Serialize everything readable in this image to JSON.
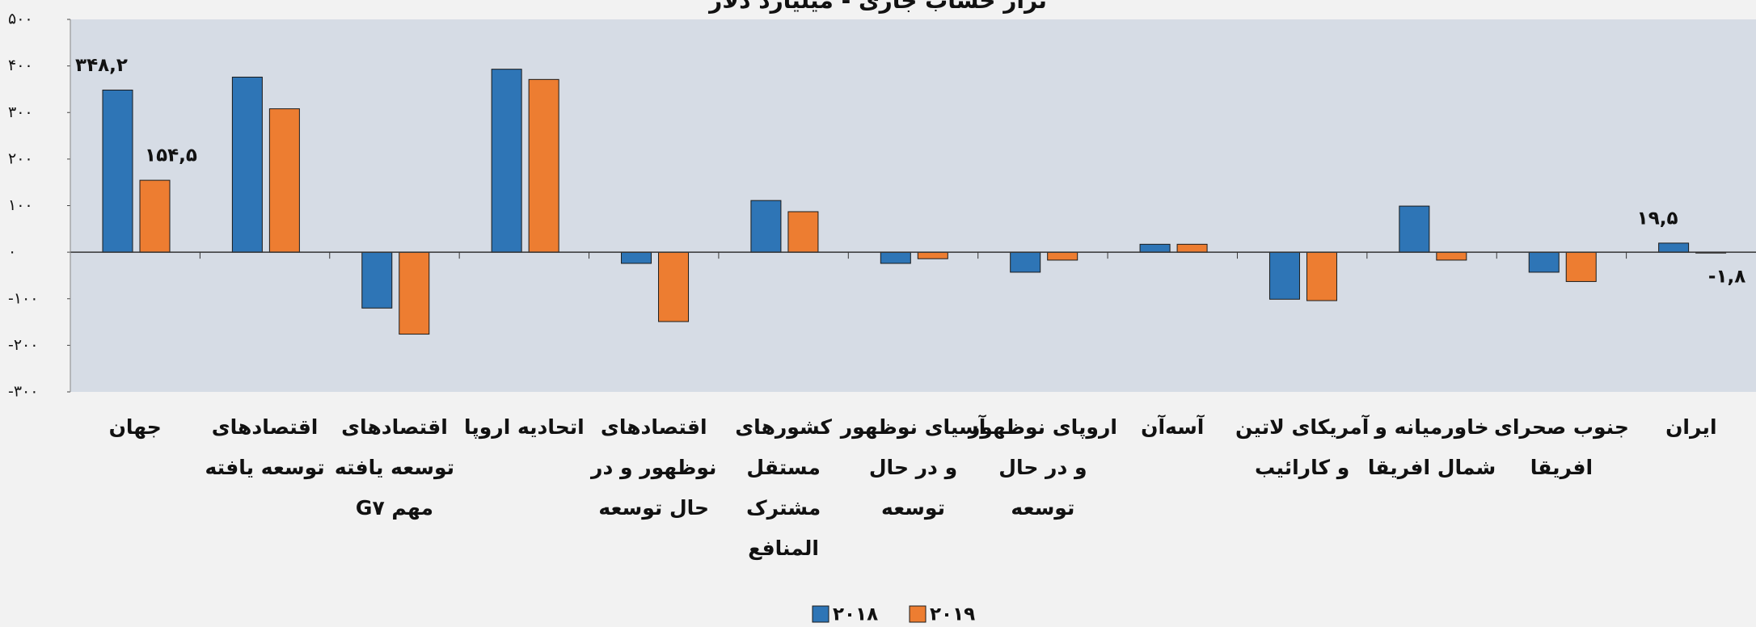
{
  "chart_data": {
    "type": "bar",
    "title": "تراز حساب جاری - میلیارد دلار",
    "categories": [
      [
        "جهان"
      ],
      [
        "اقتصادهای",
        "توسعه یافته"
      ],
      [
        "اقتصادهای",
        "توسعه یافته",
        "مهم G۷"
      ],
      [
        "اتحادیه اروپا"
      ],
      [
        "اقتصادهای",
        "نوظهور و در",
        "حال توسعه"
      ],
      [
        "کشورهای",
        "مستقل",
        "مشترک",
        "المنافع"
      ],
      [
        "آسیای نوظهور",
        "و در حال",
        "توسعه"
      ],
      [
        "اروپای نوظهور",
        "و در حال",
        "توسعه"
      ],
      [
        "آسه‌آن"
      ],
      [
        "آمریکای لاتین",
        "و کارائیب"
      ],
      [
        "خاورمیانه و",
        "شمال افریقا"
      ],
      [
        "جنوب صحرای",
        "افریقا"
      ],
      [
        "ایران"
      ]
    ],
    "series": [
      {
        "name": "۲۰۱۸",
        "color": "#2e75b6",
        "values": [
          348.2,
          376,
          -120,
          393,
          -24,
          111,
          -24,
          -43,
          17,
          -101,
          99,
          -43,
          19.5
        ],
        "value_labels": [
          "۳۴۸,۲",
          null,
          null,
          null,
          null,
          null,
          null,
          null,
          null,
          null,
          null,
          null,
          "۱۹,۵"
        ]
      },
      {
        "name": "۲۰۱۹",
        "color": "#ed7d31",
        "values": [
          154.5,
          308,
          -176,
          371,
          -149,
          87,
          -14,
          -17,
          17,
          -104,
          -17,
          -63,
          -1.8
        ],
        "value_labels": [
          "۱۵۴,۵",
          null,
          null,
          null,
          null,
          null,
          null,
          null,
          null,
          null,
          null,
          null,
          "-۱,۸"
        ]
      }
    ],
    "ylim": [
      -300,
      500
    ],
    "yticks": [
      {
        "value": -300,
        "label": "-۳۰۰"
      },
      {
        "value": -200,
        "label": "-۲۰۰"
      },
      {
        "value": -100,
        "label": "-۱۰۰"
      },
      {
        "value": 0,
        "label": "۰"
      },
      {
        "value": 100,
        "label": "۱۰۰"
      },
      {
        "value": 200,
        "label": "۲۰۰"
      },
      {
        "value": 300,
        "label": "۳۰۰"
      },
      {
        "value": 400,
        "label": "۴۰۰"
      },
      {
        "value": 500,
        "label": "۵۰۰"
      }
    ],
    "legend": "bottom"
  }
}
